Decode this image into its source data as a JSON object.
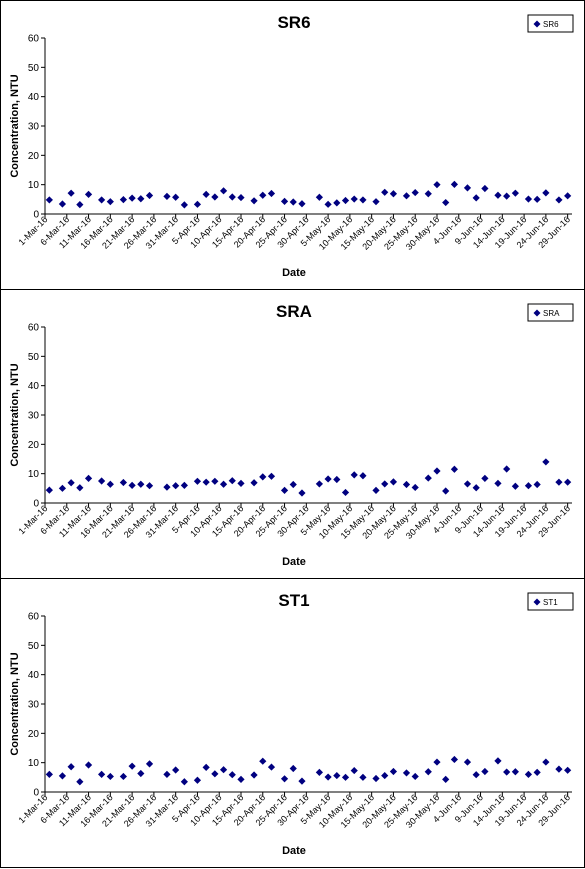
{
  "charts": [
    {
      "title": "SR6",
      "legend_label": "SR6",
      "ylabel": "Concentration, NTU",
      "xlabel": "Date",
      "ylim": [
        0,
        60
      ],
      "yticks": [
        0,
        10,
        20,
        30,
        40,
        50,
        60
      ],
      "x_start": "2016-03-01",
      "x_end": "2016-06-30",
      "xtick_labels": [
        "1-Mar-16",
        "6-Mar-16",
        "11-Mar-16",
        "16-Mar-16",
        "21-Mar-16",
        "26-Mar-16",
        "31-Mar-16",
        "5-Apr-16",
        "10-Apr-16",
        "15-Apr-16",
        "20-Apr-16",
        "25-Apr-16",
        "30-Apr-16",
        "5-May-16",
        "10-May-16",
        "15-May-16",
        "20-May-16",
        "25-May-16",
        "30-May-16",
        "4-Jun-16",
        "9-Jun-16",
        "14-Jun-16",
        "19-Jun-16",
        "24-Jun-16",
        "29-Jun-16"
      ]
    },
    {
      "title": "SRA",
      "legend_label": "SRA",
      "ylabel": "Concentration, NTU",
      "xlabel": "Date",
      "ylim": [
        0,
        60
      ],
      "yticks": [
        0,
        10,
        20,
        30,
        40,
        50,
        60
      ],
      "x_start": "2016-03-01",
      "x_end": "2016-06-30",
      "xtick_labels": [
        "1-Mar-16",
        "6-Mar-16",
        "11-Mar-16",
        "16-Mar-16",
        "21-Mar-16",
        "26-Mar-16",
        "31-Mar-16",
        "5-Apr-16",
        "10-Apr-16",
        "15-Apr-16",
        "20-Apr-16",
        "25-Apr-16",
        "30-Apr-16",
        "5-May-16",
        "10-May-16",
        "15-May-16",
        "20-May-16",
        "25-May-16",
        "30-May-16",
        "4-Jun-16",
        "9-Jun-16",
        "14-Jun-16",
        "19-Jun-16",
        "24-Jun-16",
        "29-Jun-16"
      ]
    },
    {
      "title": "ST1",
      "legend_label": "ST1",
      "ylabel": "Concentration, NTU",
      "xlabel": "Date",
      "ylim": [
        0,
        60
      ],
      "yticks": [
        0,
        10,
        20,
        30,
        40,
        50,
        60
      ],
      "x_start": "2016-03-01",
      "x_end": "2016-06-30",
      "xtick_labels": [
        "1-Mar-16",
        "6-Mar-16",
        "11-Mar-16",
        "16-Mar-16",
        "21-Mar-16",
        "26-Mar-16",
        "31-Mar-16",
        "5-Apr-16",
        "10-Apr-16",
        "15-Apr-16",
        "20-Apr-16",
        "25-Apr-16",
        "30-Apr-16",
        "5-May-16",
        "10-May-16",
        "15-May-16",
        "20-May-16",
        "25-May-16",
        "30-May-16",
        "4-Jun-16",
        "9-Jun-16",
        "14-Jun-16",
        "19-Jun-16",
        "24-Jun-16",
        "29-Jun-16"
      ]
    }
  ],
  "chart_data": [
    {
      "type": "scatter",
      "title": "SR6",
      "xlabel": "Date",
      "ylabel": "Concentration, NTU",
      "ylim": [
        0,
        60
      ],
      "legend": "top-right",
      "marker_color": "#000080",
      "series": [
        {
          "name": "SR6",
          "points": [
            [
              "2016-03-02",
              4.8
            ],
            [
              "2016-03-05",
              3.4
            ],
            [
              "2016-03-07",
              7.1
            ],
            [
              "2016-03-09",
              3.2
            ],
            [
              "2016-03-11",
              6.7
            ],
            [
              "2016-03-14",
              4.8
            ],
            [
              "2016-03-16",
              4.2
            ],
            [
              "2016-03-19",
              4.9
            ],
            [
              "2016-03-21",
              5.4
            ],
            [
              "2016-03-23",
              5.2
            ],
            [
              "2016-03-25",
              6.3
            ],
            [
              "2016-03-29",
              6.0
            ],
            [
              "2016-03-31",
              5.7
            ],
            [
              "2016-04-02",
              3.1
            ],
            [
              "2016-04-05",
              3.3
            ],
            [
              "2016-04-07",
              6.7
            ],
            [
              "2016-04-09",
              5.8
            ],
            [
              "2016-04-11",
              7.9
            ],
            [
              "2016-04-13",
              5.8
            ],
            [
              "2016-04-15",
              5.6
            ],
            [
              "2016-04-18",
              4.5
            ],
            [
              "2016-04-20",
              6.4
            ],
            [
              "2016-04-22",
              7.0
            ],
            [
              "2016-04-25",
              4.3
            ],
            [
              "2016-04-27",
              4.1
            ],
            [
              "2016-04-29",
              3.5
            ],
            [
              "2016-05-03",
              5.7
            ],
            [
              "2016-05-05",
              3.3
            ],
            [
              "2016-05-07",
              3.8
            ],
            [
              "2016-05-09",
              4.6
            ],
            [
              "2016-05-11",
              5.1
            ],
            [
              "2016-05-13",
              4.8
            ],
            [
              "2016-05-16",
              4.2
            ],
            [
              "2016-05-18",
              7.4
            ],
            [
              "2016-05-20",
              6.9
            ],
            [
              "2016-05-23",
              6.2
            ],
            [
              "2016-05-25",
              7.3
            ],
            [
              "2016-05-28",
              6.9
            ],
            [
              "2016-05-30",
              10.0
            ],
            [
              "2016-06-01",
              3.9
            ],
            [
              "2016-06-03",
              10.1
            ],
            [
              "2016-06-06",
              8.9
            ],
            [
              "2016-06-08",
              5.5
            ],
            [
              "2016-06-10",
              8.7
            ],
            [
              "2016-06-13",
              6.4
            ],
            [
              "2016-06-15",
              6.1
            ],
            [
              "2016-06-17",
              7.1
            ],
            [
              "2016-06-20",
              5.1
            ],
            [
              "2016-06-22",
              5.0
            ],
            [
              "2016-06-24",
              7.2
            ],
            [
              "2016-06-27",
              4.8
            ],
            [
              "2016-06-29",
              6.2
            ]
          ]
        }
      ]
    },
    {
      "type": "scatter",
      "title": "SRA",
      "xlabel": "Date",
      "ylabel": "Concentration, NTU",
      "ylim": [
        0,
        60
      ],
      "legend": "top-right",
      "marker_color": "#000080",
      "series": [
        {
          "name": "SRA",
          "points": [
            [
              "2016-03-02",
              4.4
            ],
            [
              "2016-03-05",
              5.0
            ],
            [
              "2016-03-07",
              6.9
            ],
            [
              "2016-03-09",
              5.2
            ],
            [
              "2016-03-11",
              8.4
            ],
            [
              "2016-03-14",
              7.5
            ],
            [
              "2016-03-16",
              6.4
            ],
            [
              "2016-03-19",
              7.0
            ],
            [
              "2016-03-21",
              6.0
            ],
            [
              "2016-03-23",
              6.4
            ],
            [
              "2016-03-25",
              5.9
            ],
            [
              "2016-03-29",
              5.4
            ],
            [
              "2016-03-31",
              5.9
            ],
            [
              "2016-04-02",
              6.0
            ],
            [
              "2016-04-05",
              7.4
            ],
            [
              "2016-04-07",
              7.1
            ],
            [
              "2016-04-09",
              7.4
            ],
            [
              "2016-04-11",
              6.4
            ],
            [
              "2016-04-13",
              7.6
            ],
            [
              "2016-04-15",
              6.7
            ],
            [
              "2016-04-18",
              6.9
            ],
            [
              "2016-04-20",
              8.9
            ],
            [
              "2016-04-22",
              9.1
            ],
            [
              "2016-04-25",
              4.3
            ],
            [
              "2016-04-27",
              6.3
            ],
            [
              "2016-04-29",
              3.4
            ],
            [
              "2016-05-03",
              6.5
            ],
            [
              "2016-05-05",
              8.2
            ],
            [
              "2016-05-07",
              8.0
            ],
            [
              "2016-05-09",
              3.6
            ],
            [
              "2016-05-11",
              9.6
            ],
            [
              "2016-05-13",
              9.3
            ],
            [
              "2016-05-16",
              4.3
            ],
            [
              "2016-05-18",
              6.5
            ],
            [
              "2016-05-20",
              7.2
            ],
            [
              "2016-05-23",
              6.3
            ],
            [
              "2016-05-25",
              5.3
            ],
            [
              "2016-05-28",
              8.5
            ],
            [
              "2016-05-30",
              10.9
            ],
            [
              "2016-06-01",
              4.1
            ],
            [
              "2016-06-03",
              11.5
            ],
            [
              "2016-06-06",
              6.5
            ],
            [
              "2016-06-08",
              5.2
            ],
            [
              "2016-06-10",
              8.4
            ],
            [
              "2016-06-13",
              6.7
            ],
            [
              "2016-06-15",
              11.6
            ],
            [
              "2016-06-17",
              5.7
            ],
            [
              "2016-06-20",
              5.9
            ],
            [
              "2016-06-22",
              6.3
            ],
            [
              "2016-06-24",
              14.0
            ],
            [
              "2016-06-27",
              7.1
            ],
            [
              "2016-06-29",
              7.1
            ]
          ]
        }
      ]
    },
    {
      "type": "scatter",
      "title": "ST1",
      "xlabel": "Date",
      "ylabel": "Concentration, NTU",
      "ylim": [
        0,
        60
      ],
      "legend": "top-right",
      "marker_color": "#000080",
      "series": [
        {
          "name": "ST1",
          "points": [
            [
              "2016-03-02",
              6.0
            ],
            [
              "2016-03-05",
              5.5
            ],
            [
              "2016-03-07",
              8.6
            ],
            [
              "2016-03-09",
              3.5
            ],
            [
              "2016-03-11",
              9.2
            ],
            [
              "2016-03-14",
              6.0
            ],
            [
              "2016-03-16",
              5.3
            ],
            [
              "2016-03-19",
              5.3
            ],
            [
              "2016-03-21",
              8.8
            ],
            [
              "2016-03-23",
              6.3
            ],
            [
              "2016-03-25",
              9.6
            ],
            [
              "2016-03-29",
              6.0
            ],
            [
              "2016-03-31",
              7.5
            ],
            [
              "2016-04-02",
              3.5
            ],
            [
              "2016-04-05",
              4.0
            ],
            [
              "2016-04-07",
              8.4
            ],
            [
              "2016-04-09",
              6.2
            ],
            [
              "2016-04-11",
              7.6
            ],
            [
              "2016-04-13",
              5.9
            ],
            [
              "2016-04-15",
              4.3
            ],
            [
              "2016-04-18",
              5.8
            ],
            [
              "2016-04-20",
              10.5
            ],
            [
              "2016-04-22",
              8.5
            ],
            [
              "2016-04-25",
              4.5
            ],
            [
              "2016-04-27",
              8.0
            ],
            [
              "2016-04-29",
              3.7
            ],
            [
              "2016-05-03",
              6.7
            ],
            [
              "2016-05-05",
              5.1
            ],
            [
              "2016-05-07",
              5.6
            ],
            [
              "2016-05-09",
              5.0
            ],
            [
              "2016-05-11",
              7.3
            ],
            [
              "2016-05-13",
              5.0
            ],
            [
              "2016-05-16",
              4.6
            ],
            [
              "2016-05-18",
              5.6
            ],
            [
              "2016-05-20",
              7.0
            ],
            [
              "2016-05-23",
              6.5
            ],
            [
              "2016-05-25",
              5.3
            ],
            [
              "2016-05-28",
              6.9
            ],
            [
              "2016-05-30",
              10.2
            ],
            [
              "2016-06-01",
              4.3
            ],
            [
              "2016-06-03",
              11.1
            ],
            [
              "2016-06-06",
              10.2
            ],
            [
              "2016-06-08",
              5.9
            ],
            [
              "2016-06-10",
              7.0
            ],
            [
              "2016-06-13",
              10.6
            ],
            [
              "2016-06-15",
              6.8
            ],
            [
              "2016-06-17",
              6.9
            ],
            [
              "2016-06-20",
              6.0
            ],
            [
              "2016-06-22",
              6.7
            ],
            [
              "2016-06-24",
              10.2
            ],
            [
              "2016-06-27",
              7.8
            ],
            [
              "2016-06-29",
              7.4
            ]
          ]
        }
      ]
    }
  ]
}
